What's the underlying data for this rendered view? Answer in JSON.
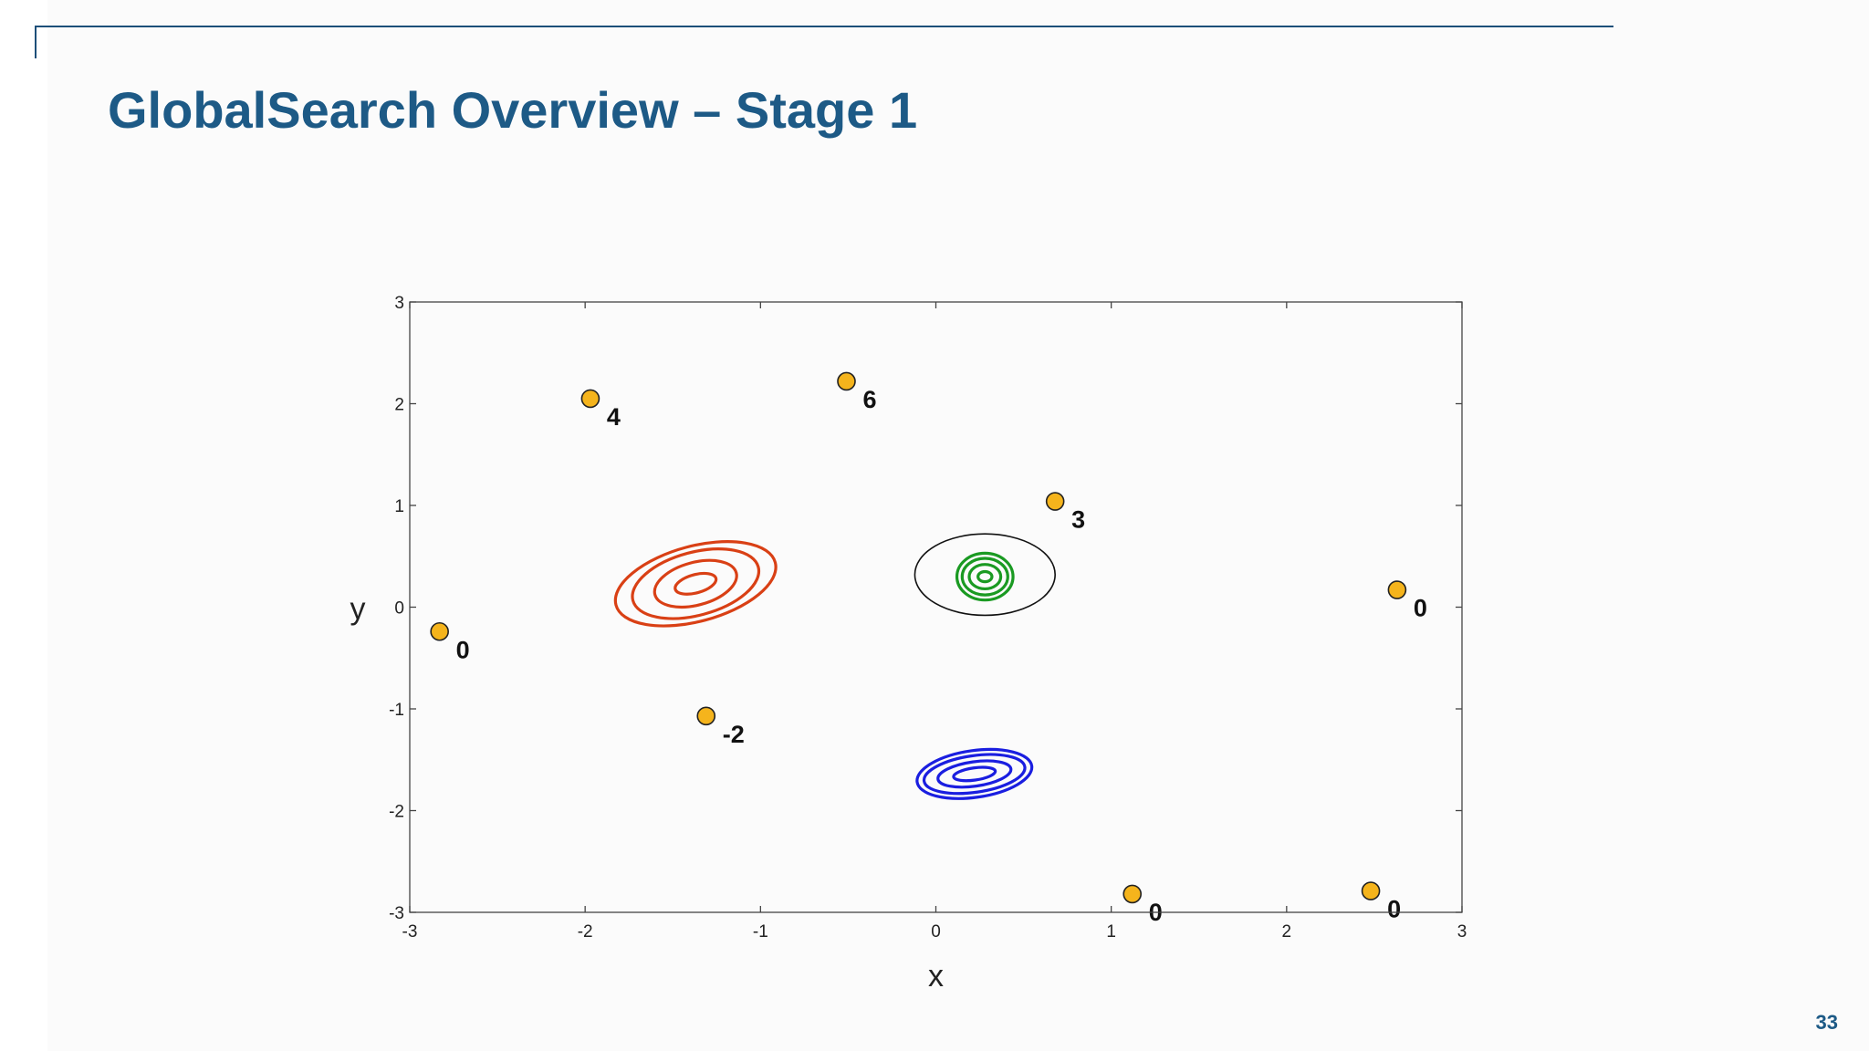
{
  "slide": {
    "title": "GlobalSearch Overview – Stage 1",
    "page_number": "33"
  },
  "chart_data": {
    "type": "scatter",
    "xlabel": "x",
    "ylabel": "y",
    "xlim": [
      -3,
      3
    ],
    "ylim": [
      -3,
      3
    ],
    "xticks": [
      -3,
      -2,
      -1,
      0,
      1,
      2,
      3
    ],
    "yticks": [
      -3,
      -2,
      -1,
      0,
      1,
      2,
      3
    ],
    "grid": false,
    "points": [
      {
        "x": -1.97,
        "y": 2.05,
        "label": "4"
      },
      {
        "x": -0.51,
        "y": 2.22,
        "label": "6"
      },
      {
        "x": 0.68,
        "y": 1.04,
        "label": "3"
      },
      {
        "x": -2.83,
        "y": -0.24,
        "label": "0"
      },
      {
        "x": -1.31,
        "y": -1.07,
        "label": "-2"
      },
      {
        "x": 2.63,
        "y": 0.17,
        "label": "0"
      },
      {
        "x": 1.12,
        "y": -2.82,
        "label": "0"
      },
      {
        "x": 2.48,
        "y": -2.79,
        "label": "0"
      }
    ],
    "point_color": "#f5b41c",
    "basins": [
      {
        "color": "#d94015",
        "cx": -1.37,
        "cy": 0.23,
        "rx": [
          0.12,
          0.24,
          0.37,
          0.47
        ],
        "ry": [
          0.09,
          0.21,
          0.31,
          0.37
        ],
        "rotate_deg": -15
      },
      {
        "color": "#1a9a22",
        "cx": 0.28,
        "cy": 0.3,
        "rx": [
          0.04,
          0.09,
          0.13,
          0.16
        ],
        "ry": [
          0.05,
          0.12,
          0.18,
          0.23
        ],
        "rotate_deg": 0
      },
      {
        "color": "#1a1ee0",
        "cx": 0.22,
        "cy": -1.64,
        "rx": [
          0.12,
          0.21,
          0.29,
          0.33
        ],
        "ry": [
          0.06,
          0.12,
          0.18,
          0.23
        ],
        "rotate_deg": -8
      }
    ],
    "circle": {
      "cx": 0.28,
      "cy": 0.32,
      "r": 0.4,
      "color": "#111111"
    }
  }
}
